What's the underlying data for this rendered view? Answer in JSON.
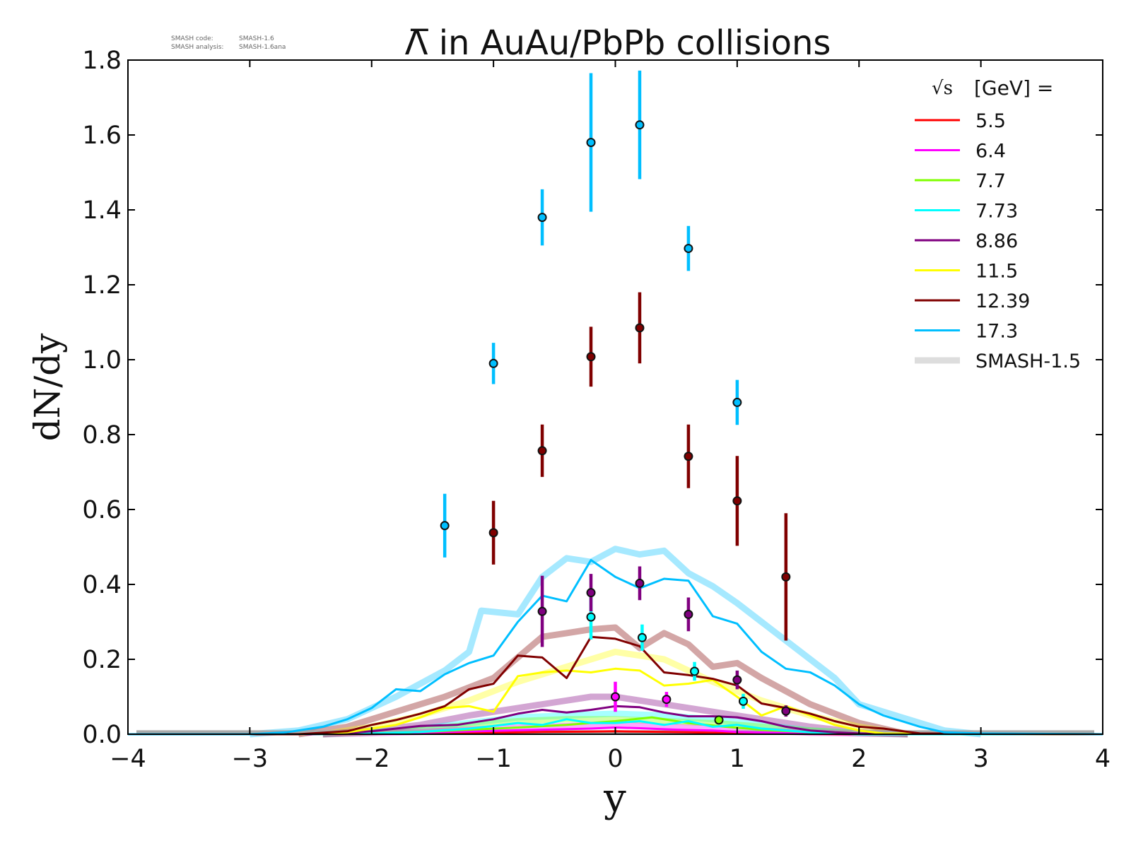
{
  "stamp": {
    "line1_key": "SMASH code:",
    "line1_val": "SMASH-1.6",
    "line2_key": "SMASH analysis:",
    "line2_val": "SMASH-1.6ana"
  },
  "chart_data": {
    "type": "line",
    "title": "Λ̅ in AuAu/PbPb collisions",
    "xlabel": "y",
    "ylabel": "dN/dy",
    "xlim": [
      -4,
      4
    ],
    "ylim": [
      0,
      1.8
    ],
    "xticks": [
      -4,
      -3,
      -2,
      -1,
      0,
      1,
      2,
      3,
      4
    ],
    "xtick_labels": [
      "−4",
      "−3",
      "−2",
      "−1",
      "0",
      "1",
      "2",
      "3",
      "4"
    ],
    "yticks": [
      0.0,
      0.2,
      0.4,
      0.6,
      0.8,
      1.0,
      1.2,
      1.4,
      1.6,
      1.8
    ],
    "ytick_labels": [
      "0.0",
      "0.2",
      "0.4",
      "0.6",
      "0.8",
      "1.0",
      "1.2",
      "1.4",
      "1.6",
      "1.8"
    ],
    "grid": false,
    "legend": {
      "placement": "top-right",
      "title_sqrt": "√s",
      "title_rest": "[GeV] ="
    },
    "series": [
      {
        "name": "5.5",
        "color": "#ff0000",
        "x": [
          -4.0,
          -2.5,
          -2.0,
          -1.5,
          -1.0,
          -0.6,
          -0.2,
          0.0,
          0.2,
          0.6,
          1.0,
          1.5,
          2.0,
          4.0
        ],
        "y": [
          0,
          0,
          0.001,
          0.002,
          0.004,
          0.006,
          0.007,
          0.008,
          0.007,
          0.005,
          0.003,
          0.001,
          0,
          0
        ],
        "points": []
      },
      {
        "name": "6.4",
        "color": "#ff00ff",
        "x": [
          -4.0,
          -2.5,
          -2.0,
          -1.5,
          -1.0,
          -0.6,
          -0.2,
          0.0,
          0.2,
          0.5,
          0.8,
          1.0,
          1.4,
          2.0,
          4.0
        ],
        "y": [
          0,
          0,
          0.002,
          0.005,
          0.009,
          0.012,
          0.015,
          0.018,
          0.016,
          0.012,
          0.01,
          0.006,
          0.003,
          0,
          0
        ],
        "points": [
          {
            "x": 0.0,
            "y": 0.1,
            "err": 0.04
          },
          {
            "x": 0.42,
            "y": 0.093,
            "err": 0.02
          }
        ]
      },
      {
        "name": "7.7",
        "color": "#7fff00",
        "x": [
          -4.0,
          -2.5,
          -2.0,
          -1.6,
          -1.2,
          -0.8,
          -0.4,
          -0.2,
          0.0,
          0.3,
          0.6,
          0.9,
          1.2,
          1.6,
          2.0,
          4.0
        ],
        "y": [
          0,
          0,
          0.002,
          0.006,
          0.012,
          0.018,
          0.025,
          0.03,
          0.035,
          0.045,
          0.03,
          0.02,
          0.012,
          0.005,
          0,
          0
        ],
        "points": [
          {
            "x": 0.85,
            "y": 0.038,
            "err": 0.01
          }
        ]
      },
      {
        "name": "7.73",
        "color": "#00ffff",
        "x": [
          -4.0,
          -2.5,
          -2.0,
          -1.6,
          -1.2,
          -1.0,
          -0.8,
          -0.6,
          -0.4,
          -0.2,
          0.0,
          0.2,
          0.4,
          0.6,
          0.8,
          1.0,
          1.2,
          1.6,
          2.0,
          4.0
        ],
        "y": [
          0,
          0,
          0.002,
          0.006,
          0.015,
          0.022,
          0.03,
          0.025,
          0.04,
          0.03,
          0.03,
          0.035,
          0.025,
          0.035,
          0.02,
          0.025,
          0.015,
          0.005,
          0,
          0
        ],
        "points": [
          {
            "x": -0.2,
            "y": 0.313,
            "err": 0.06
          },
          {
            "x": 0.22,
            "y": 0.258,
            "err": 0.035
          },
          {
            "x": 0.65,
            "y": 0.168,
            "err": 0.025
          },
          {
            "x": 1.05,
            "y": 0.088,
            "err": 0.02
          }
        ]
      },
      {
        "name": "8.86",
        "color": "#800080",
        "x": [
          -4.0,
          -2.5,
          -2.2,
          -2.0,
          -1.8,
          -1.6,
          -1.3,
          -1.0,
          -0.8,
          -0.6,
          -0.4,
          -0.2,
          0.0,
          0.2,
          0.4,
          0.6,
          0.8,
          1.0,
          1.2,
          1.4,
          1.6,
          1.8,
          2.0,
          4.0
        ],
        "y": [
          0,
          0,
          0.003,
          0.008,
          0.015,
          0.022,
          0.025,
          0.04,
          0.055,
          0.065,
          0.058,
          0.065,
          0.075,
          0.072,
          0.058,
          0.048,
          0.048,
          0.045,
          0.035,
          0.02,
          0.01,
          0.005,
          0.002,
          0
        ],
        "points": [
          {
            "x": -0.6,
            "y": 0.328,
            "err": 0.095
          },
          {
            "x": -0.2,
            "y": 0.378,
            "err": 0.05
          },
          {
            "x": 0.2,
            "y": 0.403,
            "err": 0.045
          },
          {
            "x": 0.6,
            "y": 0.32,
            "err": 0.045
          },
          {
            "x": 1.0,
            "y": 0.145,
            "err": 0.025
          },
          {
            "x": 1.4,
            "y": 0.062,
            "err": 0.015
          }
        ]
      },
      {
        "name": "11.5",
        "color": "#ffff00",
        "x": [
          -4.0,
          -2.6,
          -2.2,
          -2.0,
          -1.8,
          -1.6,
          -1.4,
          -1.2,
          -1.0,
          -0.8,
          -0.6,
          -0.4,
          -0.2,
          0.0,
          0.2,
          0.4,
          0.6,
          0.8,
          1.0,
          1.2,
          1.4,
          1.6,
          1.8,
          2.0,
          2.2,
          4.0
        ],
        "y": [
          0,
          0,
          0.005,
          0.015,
          0.025,
          0.045,
          0.07,
          0.075,
          0.06,
          0.155,
          0.165,
          0.17,
          0.165,
          0.175,
          0.17,
          0.13,
          0.135,
          0.145,
          0.1,
          0.05,
          0.075,
          0.05,
          0.025,
          0.01,
          0.002,
          0
        ],
        "points": []
      },
      {
        "name": "12.39",
        "color": "#800000",
        "x": [
          -4.0,
          -2.6,
          -2.2,
          -2.0,
          -1.8,
          -1.6,
          -1.4,
          -1.2,
          -1.0,
          -0.8,
          -0.6,
          -0.4,
          -0.2,
          0.0,
          0.2,
          0.4,
          0.6,
          0.8,
          1.0,
          1.2,
          1.4,
          1.6,
          1.8,
          2.0,
          2.2,
          2.5,
          4.0
        ],
        "y": [
          0,
          0,
          0.008,
          0.025,
          0.038,
          0.055,
          0.075,
          0.12,
          0.135,
          0.21,
          0.205,
          0.15,
          0.26,
          0.255,
          0.235,
          0.165,
          0.158,
          0.148,
          0.13,
          0.082,
          0.07,
          0.055,
          0.035,
          0.02,
          0.015,
          0.002,
          0
        ],
        "points": [
          {
            "x": -1.0,
            "y": 0.538,
            "err": 0.085
          },
          {
            "x": -0.6,
            "y": 0.757,
            "err": 0.07
          },
          {
            "x": -0.2,
            "y": 1.008,
            "err": 0.08
          },
          {
            "x": 0.2,
            "y": 1.085,
            "err": 0.095
          },
          {
            "x": 0.6,
            "y": 0.742,
            "err": 0.085
          },
          {
            "x": 1.0,
            "y": 0.623,
            "err": 0.12
          },
          {
            "x": 1.4,
            "y": 0.42,
            "err": 0.17
          }
        ]
      },
      {
        "name": "17.3",
        "color": "#00bfff",
        "x": [
          -4.0,
          -3.0,
          -2.7,
          -2.4,
          -2.2,
          -2.0,
          -1.8,
          -1.6,
          -1.4,
          -1.2,
          -1.0,
          -0.8,
          -0.6,
          -0.4,
          -0.2,
          0.0,
          0.2,
          0.4,
          0.6,
          0.8,
          1.0,
          1.2,
          1.4,
          1.6,
          1.8,
          2.0,
          2.2,
          2.5,
          2.7,
          3.0,
          4.0
        ],
        "y": [
          0,
          0,
          0.005,
          0.02,
          0.04,
          0.07,
          0.12,
          0.115,
          0.16,
          0.19,
          0.21,
          0.3,
          0.37,
          0.355,
          0.465,
          0.42,
          0.39,
          0.415,
          0.41,
          0.315,
          0.295,
          0.22,
          0.175,
          0.165,
          0.13,
          0.08,
          0.05,
          0.02,
          0.005,
          0.002,
          0
        ],
        "points": [
          {
            "x": -1.4,
            "y": 0.557,
            "err": 0.085
          },
          {
            "x": -1.0,
            "y": 0.99,
            "err": 0.055
          },
          {
            "x": -0.6,
            "y": 1.38,
            "err": 0.075
          },
          {
            "x": -0.2,
            "y": 1.58,
            "err": 0.185
          },
          {
            "x": 0.2,
            "y": 1.627,
            "err": 0.145
          },
          {
            "x": 0.6,
            "y": 1.297,
            "err": 0.06
          },
          {
            "x": 1.0,
            "y": 0.886,
            "err": 0.06
          }
        ]
      }
    ],
    "reference": {
      "name": "SMASH-1.5",
      "color": "#cccccc",
      "alpha": 0.35,
      "baseline_y": 0.005,
      "curves": [
        {
          "color": "#00bfff",
          "x": [
            -3.0,
            -2.6,
            -2.2,
            -1.8,
            -1.4,
            -1.2,
            -1.1,
            -0.8,
            -0.6,
            -0.4,
            -0.2,
            0.0,
            0.2,
            0.4,
            0.6,
            0.8,
            1.0,
            1.2,
            1.4,
            1.6,
            1.8,
            2.0,
            2.4,
            2.7,
            3.0
          ],
          "y": [
            0,
            0.01,
            0.04,
            0.1,
            0.17,
            0.22,
            0.33,
            0.32,
            0.42,
            0.47,
            0.46,
            0.495,
            0.48,
            0.49,
            0.43,
            0.395,
            0.35,
            0.3,
            0.25,
            0.2,
            0.15,
            0.08,
            0.04,
            0.01,
            0
          ]
        },
        {
          "color": "#800000",
          "x": [
            -2.6,
            -2.2,
            -1.8,
            -1.4,
            -1.0,
            -0.6,
            -0.4,
            -0.2,
            0.0,
            0.2,
            0.4,
            0.6,
            0.8,
            1.0,
            1.2,
            1.6,
            2.0,
            2.4
          ],
          "y": [
            0,
            0.02,
            0.06,
            0.1,
            0.15,
            0.26,
            0.27,
            0.28,
            0.285,
            0.23,
            0.27,
            0.24,
            0.18,
            0.19,
            0.15,
            0.08,
            0.03,
            0
          ]
        },
        {
          "color": "#ffff00",
          "x": [
            -2.4,
            -2.0,
            -1.6,
            -1.2,
            -0.8,
            -0.4,
            0.0,
            0.2,
            0.4,
            0.8,
            1.2,
            1.6,
            2.0,
            2.4
          ],
          "y": [
            0,
            0.02,
            0.05,
            0.09,
            0.14,
            0.18,
            0.22,
            0.21,
            0.2,
            0.14,
            0.09,
            0.05,
            0.02,
            0
          ]
        },
        {
          "color": "#800080",
          "x": [
            -2.4,
            -2.0,
            -1.6,
            -1.2,
            -0.8,
            -0.4,
            -0.2,
            0.0,
            0.4,
            0.8,
            1.2,
            1.6,
            2.0,
            2.4
          ],
          "y": [
            0,
            0.01,
            0.025,
            0.05,
            0.07,
            0.09,
            0.1,
            0.1,
            0.08,
            0.06,
            0.04,
            0.02,
            0.005,
            0
          ]
        },
        {
          "color": "#00ffff",
          "x": [
            -2.4,
            -2.0,
            -1.6,
            -1.2,
            -0.8,
            -0.4,
            0.0,
            0.4,
            0.8,
            1.2,
            1.6,
            2.0,
            2.4
          ],
          "y": [
            0,
            0.005,
            0.015,
            0.03,
            0.045,
            0.05,
            0.055,
            0.05,
            0.04,
            0.025,
            0.01,
            0.003,
            0
          ]
        },
        {
          "color": "#7fff00",
          "x": [
            -2.4,
            -2.0,
            -1.6,
            -1.2,
            -0.8,
            -0.4,
            0.0,
            0.4,
            0.8,
            1.2,
            1.6,
            2.0,
            2.4
          ],
          "y": [
            0,
            0.004,
            0.012,
            0.025,
            0.035,
            0.04,
            0.04,
            0.035,
            0.03,
            0.02,
            0.01,
            0.003,
            0
          ]
        },
        {
          "color": "#ff00ff",
          "x": [
            -2.4,
            -1.6,
            -1.0,
            -0.4,
            0.0,
            0.4,
            1.0,
            1.6,
            2.4
          ],
          "y": [
            0,
            0.006,
            0.015,
            0.022,
            0.025,
            0.02,
            0.012,
            0.004,
            0
          ]
        }
      ]
    }
  }
}
